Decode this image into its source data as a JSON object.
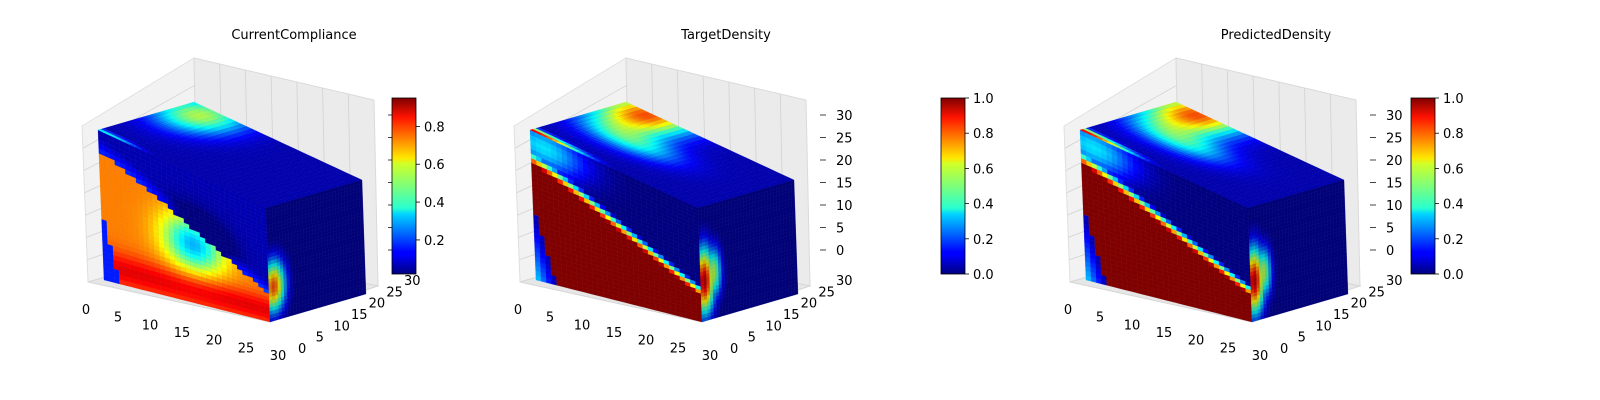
{
  "chart_data": [
    {
      "type": "heatmap",
      "title": "CurrentCompliance",
      "colormap": "jet",
      "x_ticks": [
        "0",
        "5",
        "10",
        "15",
        "20",
        "25",
        "30"
      ],
      "y_ticks": [
        "0",
        "5",
        "10",
        "15",
        "20",
        "25",
        "30"
      ],
      "z_ticks": [
        "",
        "",
        "",
        "",
        "",
        "",
        ""
      ],
      "colorbar": {
        "range": [
          0.02,
          0.95
        ],
        "ticks": [
          "0.2",
          "0.4",
          "0.6",
          "0.8"
        ],
        "tick_values": [
          0.2,
          0.4,
          0.6,
          0.8
        ]
      },
      "grid": "on",
      "pattern": "compliance"
    },
    {
      "type": "heatmap",
      "title": "TargetDensity",
      "colormap": "jet",
      "x_ticks": [
        "0",
        "5",
        "10",
        "15",
        "20",
        "25",
        "30"
      ],
      "y_ticks": [
        "0",
        "5",
        "10",
        "15",
        "20",
        "25",
        "30"
      ],
      "z_ticks": [
        "0",
        "5",
        "10",
        "15",
        "20",
        "25",
        "30"
      ],
      "colorbar": {
        "range": [
          0.0,
          1.0
        ],
        "ticks": [
          "0.0",
          "0.2",
          "0.4",
          "0.6",
          "0.8",
          "1.0"
        ],
        "tick_values": [
          0.0,
          0.2,
          0.4,
          0.6,
          0.8,
          1.0
        ]
      },
      "grid": "on",
      "pattern": "density"
    },
    {
      "type": "heatmap",
      "title": "PredictedDensity",
      "colormap": "jet",
      "x_ticks": [
        "0",
        "5",
        "10",
        "15",
        "20",
        "25",
        "30"
      ],
      "y_ticks": [
        "0",
        "5",
        "10",
        "15",
        "20",
        "25",
        "30"
      ],
      "z_ticks": [
        "0",
        "5",
        "10",
        "15",
        "20",
        "25",
        "30"
      ],
      "colorbar": {
        "range": [
          0.0,
          1.0
        ],
        "ticks": [
          "0.0",
          "0.2",
          "0.4",
          "0.6",
          "0.8",
          "1.0"
        ],
        "tick_values": [
          0.0,
          0.2,
          0.4,
          0.6,
          0.8,
          1.0
        ]
      },
      "grid": "on",
      "pattern": "density"
    }
  ]
}
